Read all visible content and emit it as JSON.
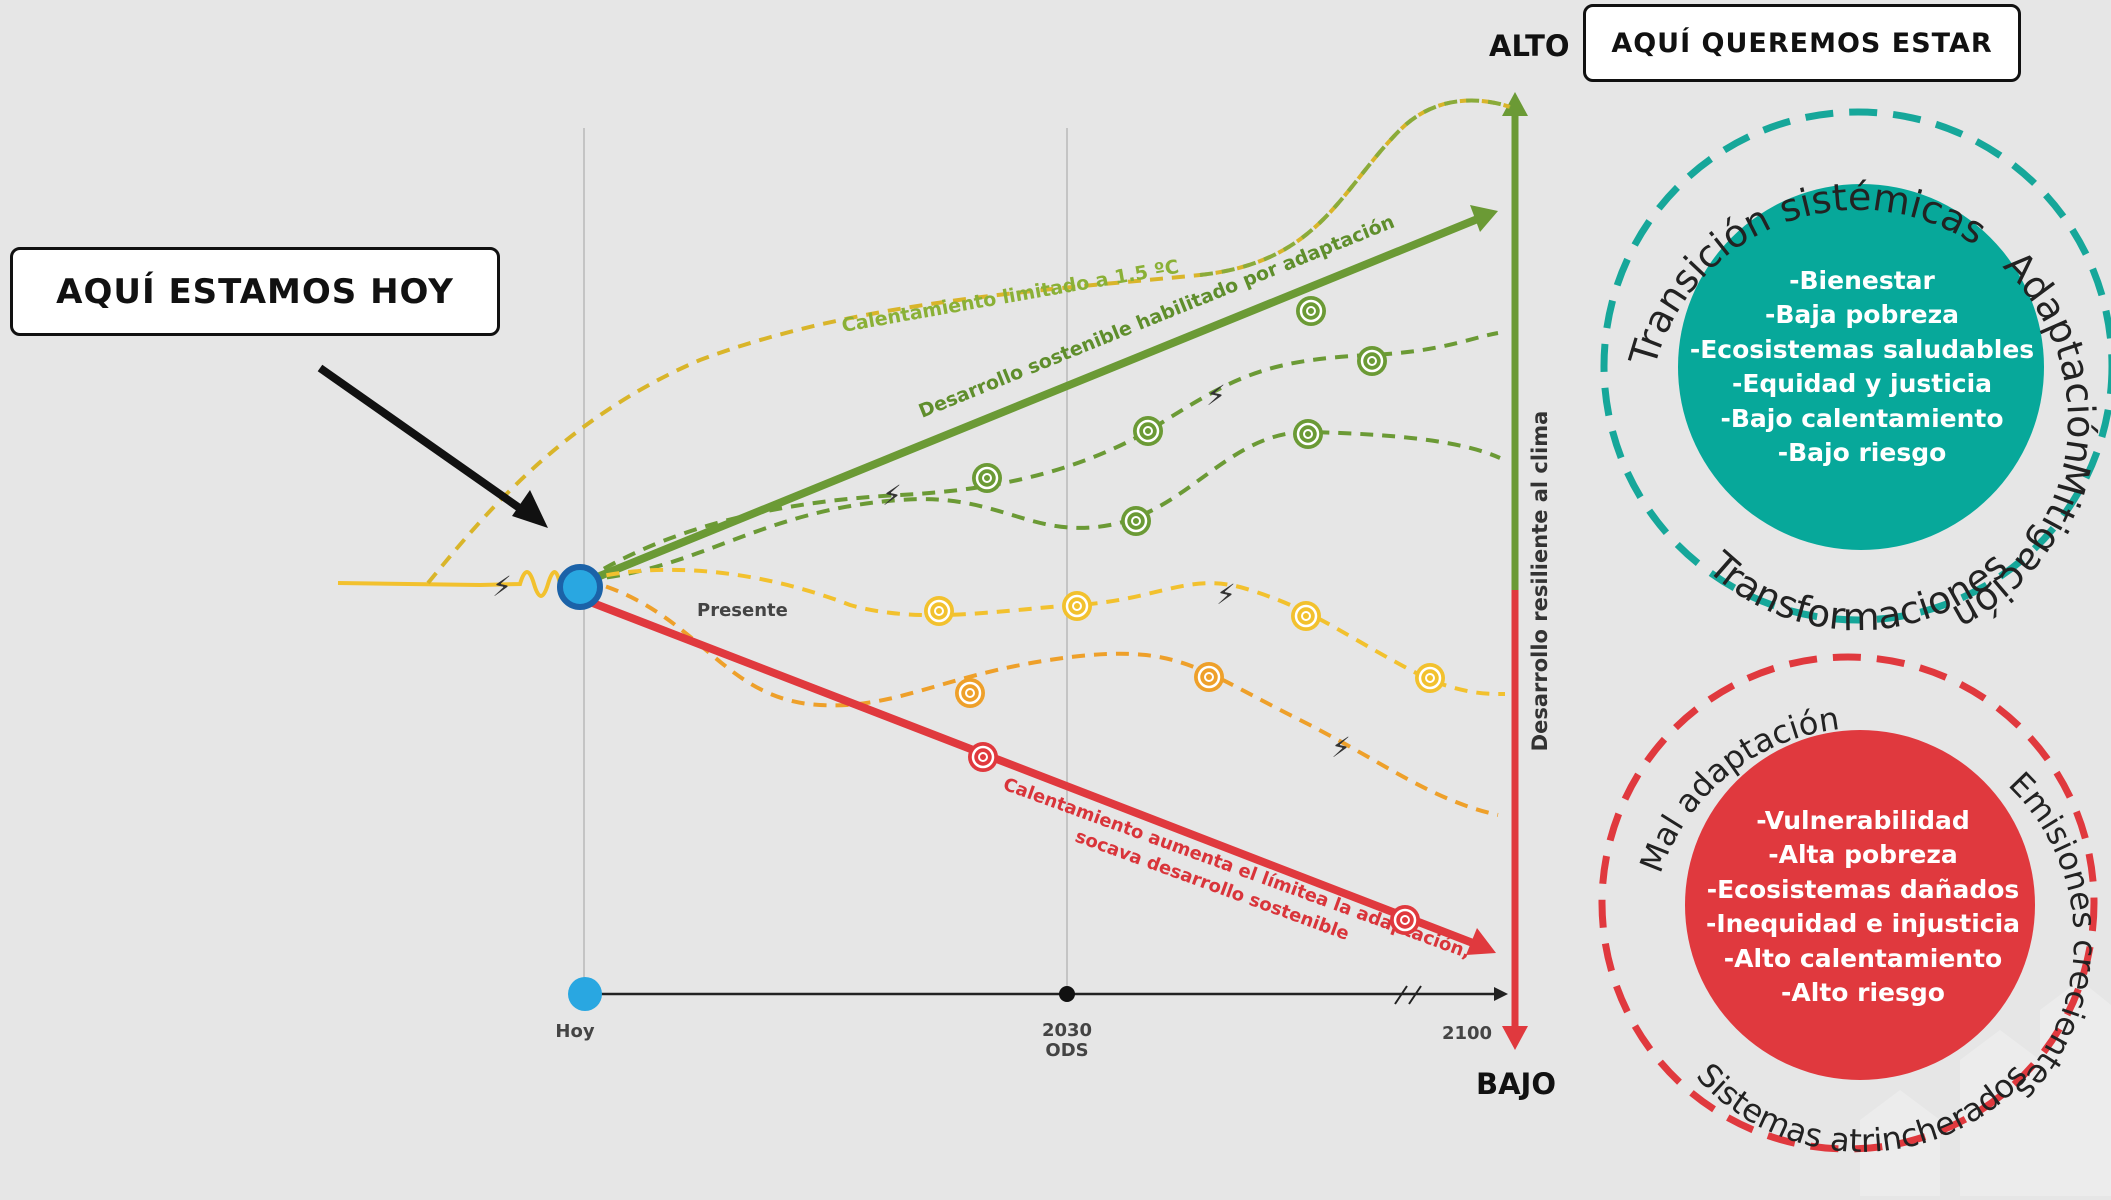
{
  "callouts": {
    "today": "AQUÍ ESTAMOS HOY",
    "goal": "AQUÍ QUEREMOS ESTAR"
  },
  "axis": {
    "vertical_label": "Desarrollo resiliente al clima",
    "top": "ALTO",
    "bottom": "BAJO",
    "present": "Presente",
    "timeline": [
      {
        "label": "Hoy",
        "sub": ""
      },
      {
        "label": "2030",
        "sub": "ODS"
      },
      {
        "label": "2100",
        "sub": ""
      }
    ]
  },
  "pathways": {
    "limited": "Calentamiento limitado a 1.5 ºC",
    "adaptation": "Desarrollo sostenible habilitado por adaptación",
    "warming_line1": "Calentamiento aumenta el límitea la adaptación,",
    "warming_line2": "socava desarrollo sostenible"
  },
  "good_circle": {
    "ring": {
      "top": "Transición sistémicas",
      "top_right": "Adaptación",
      "right": "Mitigación",
      "bottom": "Transformaciones"
    },
    "items": [
      "-Bienestar",
      "-Baja pobreza",
      "-Ecosistemas saludables",
      "-Equidad y justicia",
      "-Bajo calentamiento",
      "-Bajo riesgo"
    ]
  },
  "bad_circle": {
    "ring": {
      "left": "Mal adaptación",
      "right": "Emisiones crecientes",
      "bottom": "Sistemas atrincherados"
    },
    "items": [
      "-Vulnerabilidad",
      "-Alta pobreza",
      "-Ecosistemas dañados",
      "-Inequidad e injusticia",
      "-Alto calentamiento",
      "-Alto riesgo"
    ]
  },
  "colors": {
    "background": "#e6e6e6",
    "green": "#6b9a35",
    "yellow": "#f2c12e",
    "orange": "#eea02a",
    "red": "#e0393e",
    "teal": "#07a89a",
    "teal_ring": "#16a79a",
    "blue": "#29a7e1"
  }
}
